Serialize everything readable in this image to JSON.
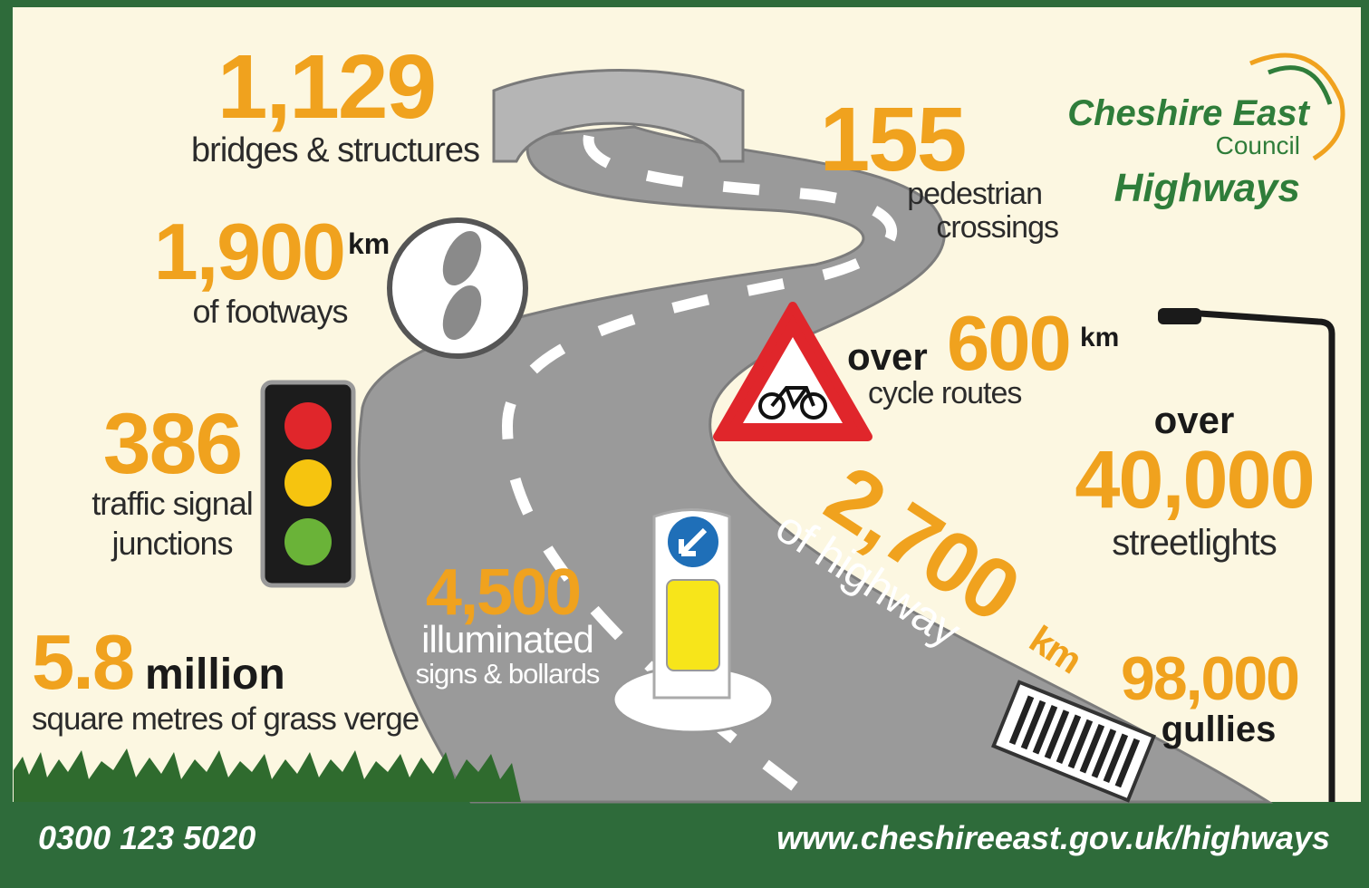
{
  "logo": {
    "name": "Cheshire East",
    "sub": "Council",
    "dept": "Highways"
  },
  "stats": [
    {
      "figure": "1,129",
      "lines": [
        "bridges & structures"
      ]
    },
    {
      "figure": "1,900",
      "unit": "km",
      "lines": [
        "of footways"
      ]
    },
    {
      "figure": "386",
      "lines": [
        "traffic signal",
        "junctions"
      ]
    },
    {
      "figure": "5.8",
      "unit": "million",
      "lines": [
        "square metres of grass verge"
      ]
    },
    {
      "figure": "155",
      "lines": [
        "pedestrian",
        "crossings"
      ]
    },
    {
      "prefix": "over",
      "figure": "600",
      "unit": "km",
      "lines": [
        "cycle routes"
      ]
    },
    {
      "prefix": "over",
      "figure": "40,000",
      "lines": [
        "streetlights"
      ]
    },
    {
      "figure": "2,700",
      "unit": "km",
      "lines": [
        "of highway"
      ]
    },
    {
      "figure": "4,500",
      "lines": [
        "illuminated",
        "signs & bollards"
      ]
    },
    {
      "figure": "98,000",
      "lines": [
        "gullies"
      ]
    }
  ],
  "footer": {
    "phone": "0300 123 5020",
    "url": "www.cheshireeast.gov.uk/highways"
  }
}
